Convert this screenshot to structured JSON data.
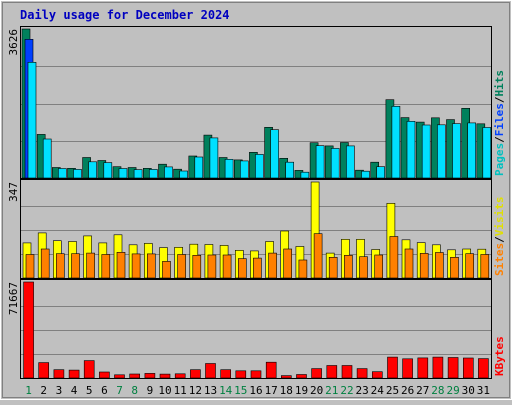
{
  "chart_data": {
    "type": "bar",
    "title": "Daily usage for December 2024",
    "categories": [
      "1",
      "2",
      "3",
      "4",
      "5",
      "6",
      "7",
      "8",
      "9",
      "10",
      "11",
      "12",
      "13",
      "14",
      "15",
      "16",
      "17",
      "18",
      "19",
      "20",
      "21",
      "22",
      "23",
      "24",
      "25",
      "26",
      "27",
      "28",
      "29",
      "30",
      "31"
    ],
    "weekend_categories": [
      "1",
      "7",
      "8",
      "14",
      "15",
      "21",
      "22",
      "28",
      "29"
    ],
    "panels": [
      {
        "id": "hits-files-pages",
        "ymax_label": "3626",
        "ylim": [
          0,
          3626
        ],
        "grid": true,
        "legend_vertical": [
          "Pages",
          "/",
          "Files",
          "/",
          "Hits"
        ],
        "series": [
          {
            "name": "Hits",
            "color": "#00805c",
            "values": [
              3626,
              1060,
              255,
              235,
              500,
              425,
              275,
              255,
              235,
              335,
              215,
              535,
              1045,
              500,
              440,
              625,
              1235,
              480,
              185,
              860,
              780,
              865,
              190,
              385,
              1905,
              1470,
              1360,
              1465,
              1420,
              1695,
              1320
            ]
          },
          {
            "name": "Files",
            "color": "#0040ff",
            "values": [
              3375,
              0,
              0,
              0,
              0,
              0,
              0,
              0,
              0,
              0,
              0,
              0,
              0,
              0,
              0,
              0,
              0,
              0,
              0,
              0,
              0,
              0,
              0,
              0,
              0,
              0,
              0,
              0,
              0,
              0,
              0
            ]
          },
          {
            "name": "Pages",
            "color": "#00e0ff",
            "values": [
              2815,
              950,
              230,
              210,
              395,
              375,
              230,
              205,
              210,
              270,
              170,
              510,
              975,
              455,
              415,
              575,
              1175,
              385,
              140,
              785,
              720,
              780,
              165,
              275,
              1745,
              1380,
              1290,
              1295,
              1325,
              1340,
              1230
            ]
          }
        ]
      },
      {
        "id": "visits-sites",
        "ymax_label": "347",
        "ylim": [
          0,
          347
        ],
        "grid": true,
        "legend_vertical": [
          "Sites",
          "/",
          "Visits"
        ],
        "series": [
          {
            "name": "Visits",
            "color": "#ffff00",
            "values": [
              127,
              163,
              135,
              132,
              152,
              127,
              156,
              120,
              125,
              110,
              111,
              122,
              121,
              118,
              100,
              98,
              132,
              170,
              114,
              347,
              90,
              140,
              140,
              103,
              270,
              138,
              128,
              120,
              102,
              105,
              104
            ]
          },
          {
            "name": "Sites",
            "color": "#ff8000",
            "values": [
              85,
              105,
              88,
              88,
              90,
              85,
              93,
              87,
              87,
              60,
              85,
              82,
              83,
              83,
              70,
              72,
              90,
              105,
              65,
              160,
              75,
              82,
              77,
              83,
              150,
              105,
              89,
              92,
              75,
              88,
              85
            ]
          }
        ]
      },
      {
        "id": "kbytes",
        "ymax_label": "71667",
        "ylim": [
          0,
          71667
        ],
        "grid": true,
        "legend_vertical": [
          "KBytes"
        ],
        "series": [
          {
            "name": "KBytes",
            "color": "#ff0000",
            "values": [
              71667,
              11500,
              6200,
              5900,
              13000,
              4500,
              2400,
              3000,
              3400,
              2900,
              3100,
              6200,
              10800,
              6200,
              5400,
              5400,
              11800,
              1800,
              2600,
              7000,
              9300,
              9300,
              7000,
              4700,
              15600,
              14300,
              15000,
              15600,
              15300,
              14900,
              14500
            ]
          }
        ]
      }
    ]
  }
}
